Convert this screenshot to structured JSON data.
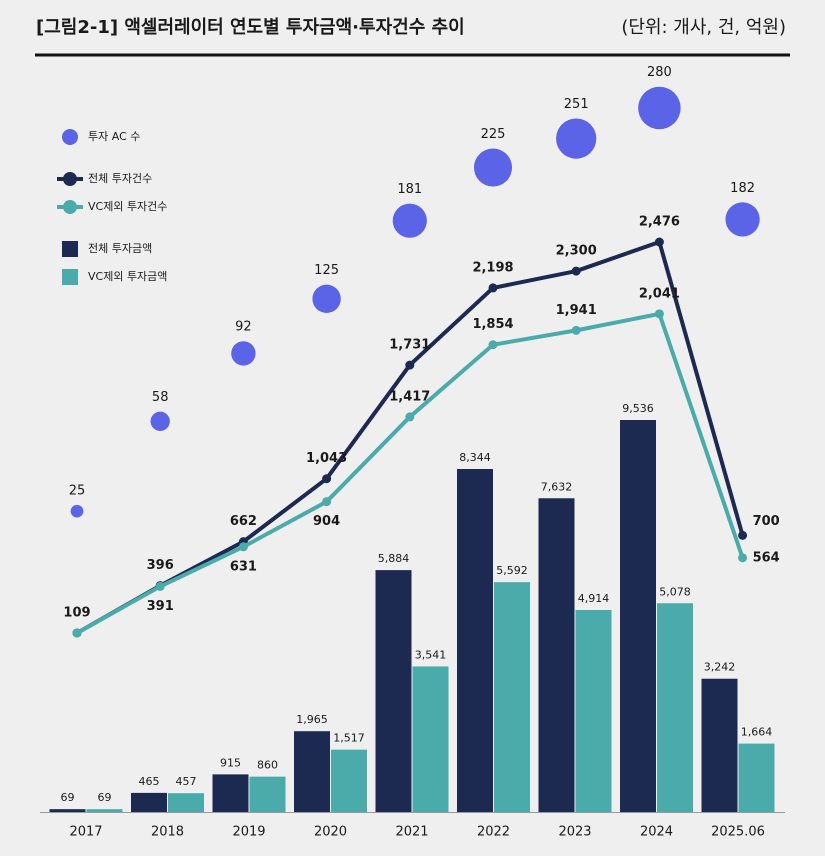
{
  "chart_data": {
    "type": "combo",
    "title": "[그림2-1] 액셀러레이터 연도별 투자금액·투자건수 추이",
    "unit_note": "(단위: 개사, 건, 억원)",
    "categories": [
      "2017",
      "2018",
      "2019",
      "2020",
      "2021",
      "2022",
      "2023",
      "2024",
      "2025.06"
    ],
    "legend": "upper left",
    "series": [
      {
        "name": "투자 AC 수",
        "type": "bubble",
        "color": "#5b63e6",
        "values": [
          25,
          58,
          92,
          125,
          181,
          225,
          251,
          280,
          182
        ]
      },
      {
        "name": "전체 투자건수",
        "type": "line",
        "color": "#1c2951",
        "values": [
          109,
          396,
          662,
          1043,
          1731,
          2198,
          2300,
          2476,
          700
        ],
        "value_labels": [
          "109",
          "396",
          "662",
          "1,043",
          "1,731",
          "2,198",
          "2,300",
          "2,476",
          "700"
        ]
      },
      {
        "name": "VC제외 투자건수",
        "type": "line",
        "color": "#4aabaa",
        "values": [
          109,
          391,
          631,
          904,
          1417,
          1854,
          1941,
          2041,
          564
        ],
        "value_labels": [
          null,
          "391",
          "631",
          "904",
          "1,417",
          "1,854",
          "1,941",
          "2,041",
          "564"
        ]
      },
      {
        "name": "전체 투자금액",
        "type": "bar",
        "color": "#1c2951",
        "values": [
          69,
          465,
          915,
          1965,
          5884,
          8344,
          7632,
          9536,
          3242
        ],
        "value_labels": [
          "69",
          "465",
          "915",
          "1,965",
          "5,884",
          "8,344",
          "7,632",
          "9,536",
          "3,242"
        ]
      },
      {
        "name": "VC제외 투자금액",
        "type": "bar",
        "color": "#4aabaa",
        "values": [
          69,
          457,
          860,
          1517,
          3541,
          5592,
          4914,
          5078,
          1664
        ],
        "value_labels": [
          "69",
          "457",
          "860",
          "1,517",
          "3,541",
          "5,592",
          "4,914",
          "5,078",
          "1,664"
        ]
      }
    ]
  }
}
